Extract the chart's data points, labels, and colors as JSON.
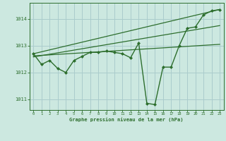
{
  "title": "Graphe pression niveau de la mer (hPa)",
  "background_color": "#cce8e0",
  "grid_color": "#aacccc",
  "line_color": "#2d6e2d",
  "xlim": [
    -0.5,
    23.5
  ],
  "ylim": [
    1010.6,
    1014.6
  ],
  "yticks": [
    1011,
    1012,
    1013,
    1014
  ],
  "xticks": [
    0,
    1,
    2,
    3,
    4,
    5,
    6,
    7,
    8,
    9,
    10,
    11,
    12,
    13,
    14,
    15,
    16,
    17,
    18,
    19,
    20,
    21,
    22,
    23
  ],
  "series": [
    {
      "x": [
        0,
        1,
        2,
        3,
        4,
        5,
        6,
        7,
        8,
        9,
        10,
        11,
        12,
        13,
        14,
        15,
        16,
        17,
        18,
        19,
        20,
        21,
        22,
        23
      ],
      "y": [
        1012.7,
        1012.3,
        1012.45,
        1012.15,
        1012.0,
        1012.45,
        1012.6,
        1012.75,
        1012.75,
        1012.8,
        1012.75,
        1012.7,
        1012.55,
        1013.1,
        1010.85,
        1010.8,
        1012.2,
        1012.2,
        1013.0,
        1013.65,
        1013.7,
        1014.15,
        1014.3,
        1014.35
      ],
      "marker": "D",
      "linewidth": 1.0,
      "markersize": 2.0,
      "zorder": 3
    },
    {
      "x": [
        0,
        23
      ],
      "y": [
        1012.62,
        1013.05
      ],
      "marker": null,
      "linewidth": 0.9,
      "markersize": 0,
      "zorder": 2
    },
    {
      "x": [
        0,
        23
      ],
      "y": [
        1012.7,
        1014.35
      ],
      "marker": null,
      "linewidth": 0.9,
      "markersize": 0,
      "zorder": 2
    },
    {
      "x": [
        0,
        23
      ],
      "y": [
        1012.58,
        1013.75
      ],
      "marker": null,
      "linewidth": 0.9,
      "markersize": 0,
      "zorder": 2
    }
  ]
}
